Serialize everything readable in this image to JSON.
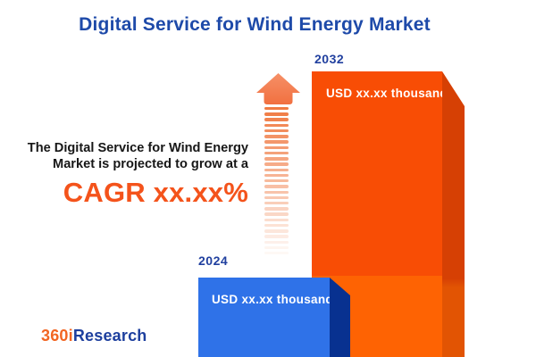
{
  "title": {
    "text": "Digital Service for Wind Energy Market"
  },
  "insight": {
    "line1": "The Digital Service for Wind Energy",
    "line2": "Market is projected to grow at a",
    "cagr": "CAGR xx.xx%"
  },
  "bars": {
    "b2024": {
      "year": "2024",
      "value_label": "USD xx.xx thousand"
    },
    "b2032": {
      "year": "2032",
      "value_label": "USD xx.xx thousand"
    }
  },
  "logo": {
    "part1": "360i",
    "part2": "Research"
  },
  "colors": {
    "title": "#1e4aa9",
    "text": "#171717",
    "accent_orange": "#f4531b",
    "arrow": "#f07a42",
    "arrow_head_light": "#f69067",
    "arrow_head_dark": "#f17040",
    "bar2024_face": "#2f72e8",
    "bar2024_side": "#083190",
    "bar2032_face_top": "#f84d05",
    "bar2032_face_bottom": "#fe6303",
    "bar2032_side_top": "#d64004",
    "bar2032_side_bottom": "#e25403",
    "year_label": "#21409f",
    "bar_text": "#ffffff",
    "logo_orange": "#f26522",
    "logo_blue": "#1d3f9e"
  },
  "chart_data": {
    "type": "bar",
    "title": "Digital Service for Wind Energy Market",
    "categories": [
      "2024",
      "2032"
    ],
    "values": [
      "xx.xx",
      "xx.xx"
    ],
    "value_labels": [
      "USD xx.xx thousand",
      "USD xx.xx thousand"
    ],
    "unit": "USD thousand",
    "annotation": "The Digital Service for Wind Energy Market is projected to grow at a CAGR xx.xx%",
    "cagr": "xx.xx%",
    "bar_colors": [
      "#2f72e8",
      "#f84d05"
    ],
    "legend": false,
    "grid": false,
    "axes_visible": false,
    "source_brand": "360iResearch"
  }
}
